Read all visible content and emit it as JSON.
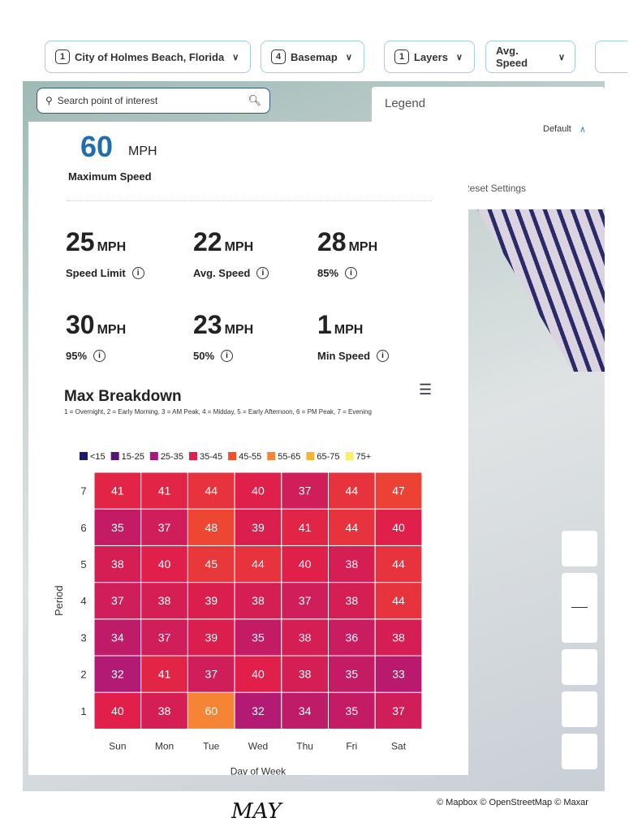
{
  "toolbar": {
    "location": {
      "count": "1",
      "label": "City of Holmes Beach, Florida"
    },
    "basemap": {
      "count": "4",
      "label": "Basemap"
    },
    "layers": {
      "count": "1",
      "label": "Layers"
    },
    "metric": {
      "label": "Avg. Speed"
    }
  },
  "search": {
    "placeholder": "Search point of interest"
  },
  "legend": {
    "title": "Legend",
    "preset": "Default",
    "reset": "Reset Settings"
  },
  "summary": {
    "max_value": "60",
    "max_unit": "MPH",
    "max_label": "Maximum Speed",
    "stats": [
      {
        "value": "25",
        "unit": "MPH",
        "label": "Speed Limit"
      },
      {
        "value": "22",
        "unit": "MPH",
        "label": "Avg. Speed"
      },
      {
        "value": "28",
        "unit": "MPH",
        "label": "85%"
      },
      {
        "value": "30",
        "unit": "MPH",
        "label": "95%"
      },
      {
        "value": "23",
        "unit": "MPH",
        "label": "50%"
      },
      {
        "value": "1",
        "unit": "MPH",
        "label": "Min Speed"
      }
    ]
  },
  "chart_data": {
    "type": "heatmap",
    "title": "Max Breakdown",
    "subtitle": "1 = Overnight, 2 = Early Morning, 3 = AM Peak, 4 = Midday, 5 = Early Afternoon, 6 = PM Peak, 7 = Evening",
    "xlabel": "Day of Week",
    "ylabel": "Period",
    "x": [
      "Sun",
      "Mon",
      "Tue",
      "Wed",
      "Thu",
      "Fri",
      "Sat"
    ],
    "y": [
      "1",
      "2",
      "3",
      "4",
      "5",
      "6",
      "7"
    ],
    "values": [
      [
        40,
        38,
        60,
        32,
        34,
        35,
        37
      ],
      [
        32,
        41,
        37,
        40,
        38,
        35,
        33
      ],
      [
        34,
        37,
        39,
        35,
        38,
        36,
        38
      ],
      [
        37,
        38,
        39,
        38,
        37,
        38,
        44
      ],
      [
        38,
        40,
        45,
        44,
        40,
        38,
        44
      ],
      [
        35,
        37,
        48,
        39,
        41,
        44,
        40
      ],
      [
        41,
        41,
        44,
        40,
        37,
        44,
        47
      ]
    ],
    "legend": [
      {
        "label": "<15",
        "color": "#1e1a6a"
      },
      {
        "label": "15-25",
        "color": "#5a1275"
      },
      {
        "label": "25-35",
        "color": "#a8187e"
      },
      {
        "label": "35-45",
        "color": "#e0204a"
      },
      {
        "label": "45-55",
        "color": "#f0502c"
      },
      {
        "label": "55-65",
        "color": "#f58535"
      },
      {
        "label": "65-75",
        "color": "#f6b434"
      },
      {
        "label": "75+",
        "color": "#f8ef6a"
      }
    ],
    "legend_position": "top"
  },
  "attribution": "© Mapbox © OpenStreetMap © Maxar",
  "handwritten_note": "MAY"
}
